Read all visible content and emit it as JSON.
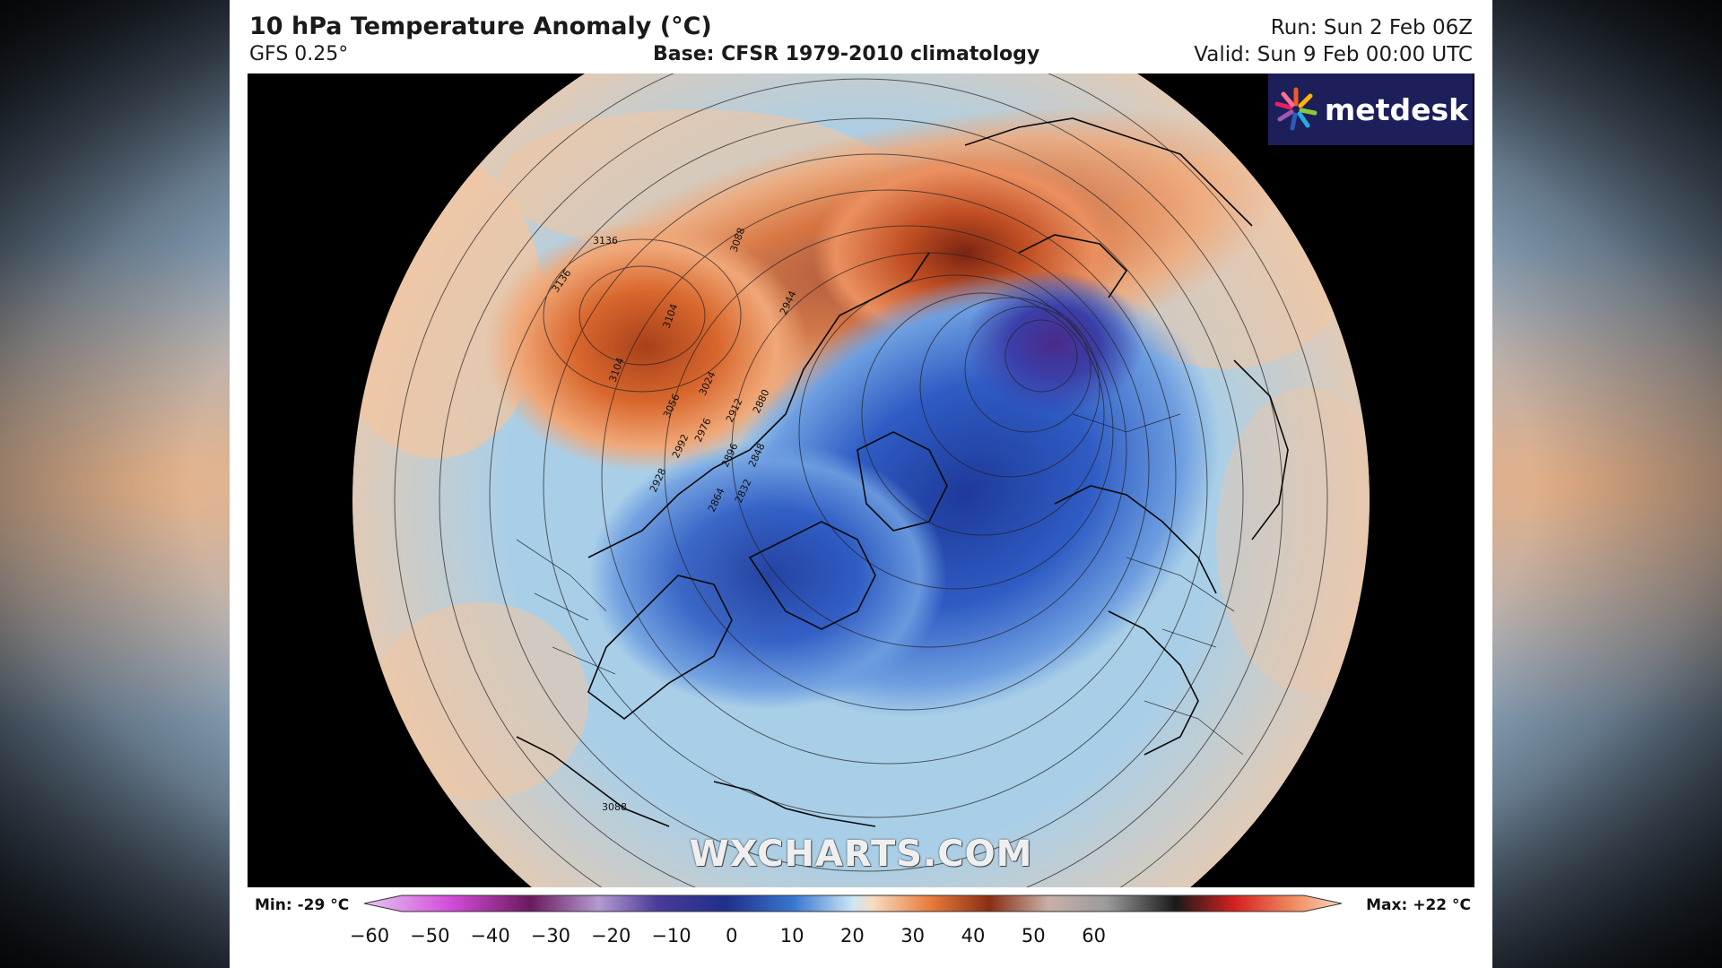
{
  "header": {
    "title": "10 hPa Temperature Anomaly (°C)",
    "model": "GFS 0.25°",
    "base": "Base: CFSR 1979-2010 climatology",
    "run": "Run: Sun 2 Feb 06Z",
    "valid": "Valid: Sun 9 Feb 00:00 UTC"
  },
  "logo": {
    "text": "metdesk",
    "icon": "starburst-logo-icon"
  },
  "watermark": "WXCHARTS.COM",
  "contour_labels": [
    "3088",
    "3088",
    "3136",
    "3136",
    "3104",
    "3104",
    "3088",
    "3056",
    "3024",
    "2992",
    "2976",
    "2944",
    "2912",
    "2896",
    "2880",
    "2864",
    "2848",
    "2832",
    "2928",
    "3088"
  ],
  "colorbar": {
    "min_label": "Min: -29 °C",
    "max_label": "Max: +22 °C",
    "ticks": [
      "−60",
      "−50",
      "−40",
      "−30",
      "−20",
      "−10",
      "0",
      "10",
      "20",
      "30",
      "40",
      "50",
      "60"
    ],
    "colors": [
      "#e0b8f0",
      "#d24ad8",
      "#5a1a5a",
      "#a78fc8",
      "#2a2a8a",
      "#3a6ad0",
      "#a6d4f0",
      "#f6d8b8",
      "#e87a3a",
      "#6a2a18",
      "#b8b8b8",
      "#222222",
      "#d42020",
      "#f6c8a0"
    ]
  },
  "colors": {
    "warm_anomaly": "#d9682e",
    "cold_anomaly": "#2a55b8",
    "neutral": "#a9cfe8",
    "background": "#000000"
  }
}
